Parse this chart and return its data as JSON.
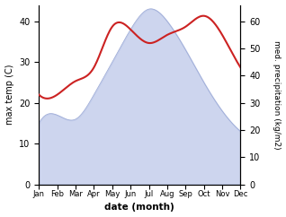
{
  "months": [
    "Jan",
    "Feb",
    "Mar",
    "Apr",
    "May",
    "Jun",
    "Jul",
    "Aug",
    "Sep",
    "Oct",
    "Nov",
    "Dec"
  ],
  "max_temp": [
    15,
    17,
    16,
    22,
    30,
    38,
    43,
    40,
    33,
    25,
    18,
    13
  ],
  "med_precip": [
    33,
    33,
    38,
    43,
    58,
    57,
    52,
    55,
    58,
    62,
    55,
    43
  ],
  "temp_fill_color": "#b8c4e8",
  "temp_line_color": "#9aa8d4",
  "precip_color": "#cc2222",
  "left_ylabel": "max temp (C)",
  "right_ylabel": "med. precipitation (kg/m2)",
  "xlabel": "date (month)",
  "ylim_left": [
    0,
    44
  ],
  "ylim_right": [
    0,
    66
  ],
  "yticks_left": [
    0,
    10,
    20,
    30,
    40
  ],
  "yticks_right": [
    0,
    10,
    20,
    30,
    40,
    50,
    60
  ],
  "bg_color": "#ffffff",
  "figsize": [
    3.18,
    2.42
  ],
  "dpi": 100
}
